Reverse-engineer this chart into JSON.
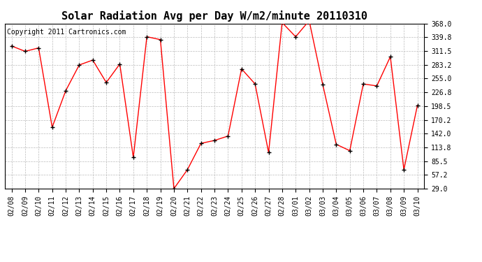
{
  "title": "Solar Radiation Avg per Day W/m2/minute 20110310",
  "copyright": "Copyright 2011 Cartronics.com",
  "dates": [
    "02/08",
    "02/09",
    "02/10",
    "02/11",
    "02/12",
    "02/13",
    "02/14",
    "02/15",
    "02/16",
    "02/17",
    "02/18",
    "02/19",
    "02/20",
    "02/21",
    "02/22",
    "02/23",
    "02/24",
    "02/25",
    "02/26",
    "02/27",
    "02/28",
    "03/01",
    "03/02",
    "03/03",
    "03/04",
    "03/05",
    "03/06",
    "03/07",
    "03/08",
    "03/09",
    "03/10"
  ],
  "values": [
    322,
    311,
    318,
    155,
    230,
    283,
    293,
    247,
    285,
    93,
    341,
    335,
    29,
    68,
    122,
    128,
    137,
    275,
    244,
    103,
    370,
    341,
    374,
    243,
    120,
    107,
    244,
    240,
    300,
    68,
    200
  ],
  "line_color": "#ff0000",
  "marker_color": "#000000",
  "bg_color": "#ffffff",
  "grid_color": "#bbbbbb",
  "ytick_labels": [
    "29.0",
    "57.2",
    "85.5",
    "113.8",
    "142.0",
    "170.2",
    "198.5",
    "226.8",
    "255.0",
    "283.2",
    "311.5",
    "339.8",
    "368.0"
  ],
  "ytick_values": [
    29.0,
    57.2,
    85.5,
    113.8,
    142.0,
    170.2,
    198.5,
    226.8,
    255.0,
    283.2,
    311.5,
    339.8,
    368.0
  ],
  "ylim": [
    29.0,
    368.0
  ],
  "title_fontsize": 11,
  "tick_fontsize": 7,
  "copyright_fontsize": 7
}
